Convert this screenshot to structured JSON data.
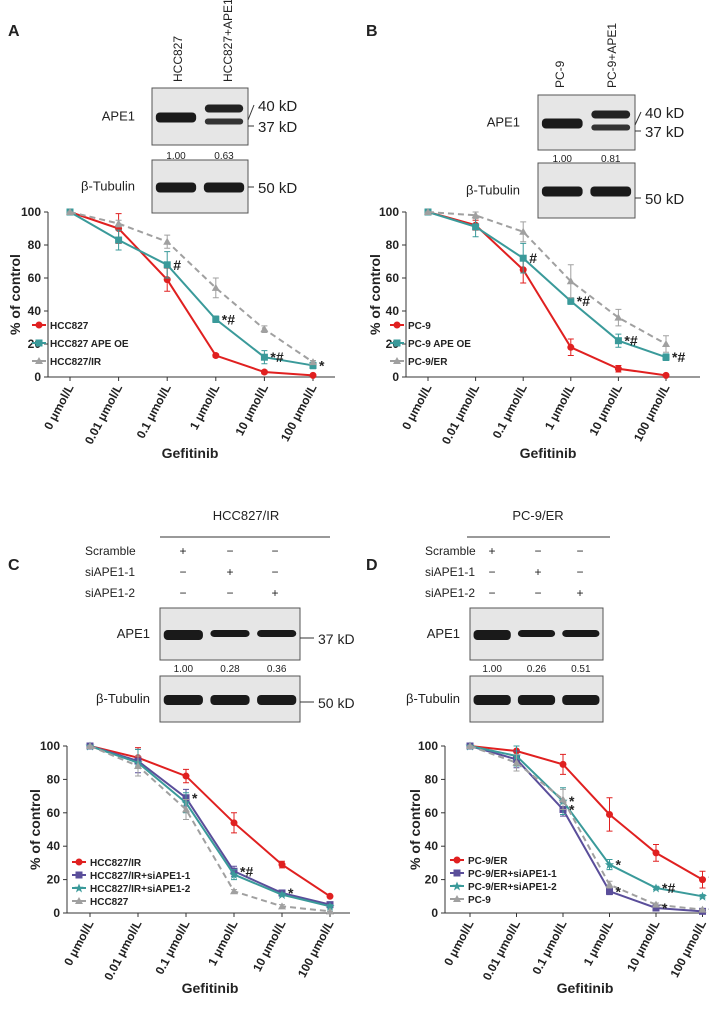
{
  "blots": [
    {
      "panel": "A",
      "lanes": [
        "HCC827",
        "HCC827+APE1"
      ],
      "proteins": [
        "APE1",
        "β-Tubulin"
      ],
      "sizes": [
        "40 kD",
        "37 kD",
        "50 kD"
      ],
      "ratios": [
        "1.00",
        "0.63"
      ]
    },
    {
      "panel": "B",
      "lanes": [
        "PC-9",
        "PC-9+APE1"
      ],
      "proteins": [
        "APE1",
        "β-Tubulin"
      ],
      "sizes": [
        "40 kD",
        "37 kD",
        "50 kD"
      ],
      "ratios": [
        "1.00",
        "0.81"
      ]
    },
    {
      "panel": "C",
      "title": "HCC827/IR",
      "treatments": [
        "Scramble",
        "siAPE1-1",
        "siAPE1-2"
      ],
      "matrix": [
        [
          "+",
          "−",
          "−"
        ],
        [
          "−",
          "+",
          "−"
        ],
        [
          "−",
          "−",
          "+"
        ]
      ],
      "proteins": [
        "APE1",
        "β-Tubulin"
      ],
      "sizes": [
        "37 kD",
        "50 kD"
      ],
      "ratios": [
        "1.00",
        "0.28",
        "0.36"
      ]
    },
    {
      "panel": "D",
      "title": "PC-9/ER",
      "treatments": [
        "Scramble",
        "siAPE1-1",
        "siAPE1-2"
      ],
      "matrix": [
        [
          "+",
          "−",
          "−"
        ],
        [
          "−",
          "+",
          "−"
        ],
        [
          "−",
          "−",
          "+"
        ]
      ],
      "proteins": [
        "APE1",
        "β-Tubulin"
      ],
      "ratios": [
        "1.00",
        "0.26",
        "0.51"
      ]
    }
  ],
  "chart_data": [
    {
      "type": "line",
      "ylabel": "% of control",
      "xlabel": "Gefitinib",
      "categories": [
        "0 μmol/L",
        "0.01 μmol/L",
        "0.1 μmol/L",
        "1 μmol/L",
        "10 μmol/L",
        "100 μmol/L"
      ],
      "ylim": [
        0,
        100
      ],
      "yticks": [
        0,
        20,
        40,
        60,
        80,
        100
      ],
      "series": [
        {
          "name": "HCC827",
          "color": "#e02020",
          "marker": "circle",
          "values": [
            100,
            90,
            59,
            13,
            3,
            1
          ],
          "errors": [
            0,
            9,
            7,
            1,
            1,
            0
          ]
        },
        {
          "name": "HCC827 APE OE",
          "color": "#3a9a9a",
          "marker": "square",
          "values": [
            100,
            83,
            68,
            35,
            12,
            7
          ],
          "errors": [
            0,
            6,
            8,
            2,
            4,
            2
          ]
        },
        {
          "name": "HCC827/IR",
          "color": "#a0a0a0",
          "marker": "triangle",
          "dash": true,
          "values": [
            100,
            93,
            82,
            54,
            29,
            9
          ],
          "errors": [
            0,
            2,
            4,
            6,
            2,
            1
          ]
        }
      ],
      "annotations": [
        {
          "text": "#",
          "category": 2,
          "series": 1
        },
        {
          "text": "*#",
          "category": 3,
          "series": 1
        },
        {
          "text": "*#",
          "category": 4,
          "series": 1
        },
        {
          "text": "*",
          "category": 5,
          "series": 1
        }
      ]
    },
    {
      "type": "line",
      "ylabel": "% of control",
      "xlabel": "Gefitinib",
      "categories": [
        "0 μmol/L",
        "0.01 μmol/L",
        "0.1 μmol/L",
        "1 μmol/L",
        "10 μmol/L",
        "100 μmol/L"
      ],
      "ylim": [
        0,
        100
      ],
      "yticks": [
        0,
        20,
        40,
        60,
        80,
        100
      ],
      "series": [
        {
          "name": "PC-9",
          "color": "#e02020",
          "marker": "circle",
          "values": [
            100,
            92,
            65,
            18,
            5,
            1
          ],
          "errors": [
            0,
            3,
            8,
            5,
            2,
            0
          ]
        },
        {
          "name": "PC-9 APE OE",
          "color": "#3a9a9a",
          "marker": "square",
          "values": [
            100,
            91,
            72,
            46,
            22,
            12
          ],
          "errors": [
            0,
            6,
            9,
            2,
            4,
            2
          ]
        },
        {
          "name": "PC-9/ER",
          "color": "#a0a0a0",
          "marker": "triangle",
          "dash": true,
          "values": [
            100,
            98,
            88,
            58,
            36,
            20
          ],
          "errors": [
            0,
            2,
            6,
            10,
            5,
            5
          ]
        }
      ],
      "annotations": [
        {
          "text": "#",
          "category": 2,
          "series": 1
        },
        {
          "text": "*#",
          "category": 3,
          "series": 1
        },
        {
          "text": "*#",
          "category": 4,
          "series": 1
        },
        {
          "text": "*#",
          "category": 5,
          "series": 1
        }
      ]
    },
    {
      "type": "line",
      "ylabel": "% of control",
      "xlabel": "Gefitinib",
      "categories": [
        "0 μmol/L",
        "0.01 μmol/L",
        "0.1 μmol/L",
        "1 μmol/L",
        "10 μmol/L",
        "100 μmol/L"
      ],
      "ylim": [
        0,
        100
      ],
      "yticks": [
        0,
        20,
        40,
        60,
        80,
        100
      ],
      "series": [
        {
          "name": "HCC827/IR",
          "color": "#e02020",
          "marker": "circle",
          "values": [
            100,
            93,
            82,
            54,
            29,
            10
          ],
          "errors": [
            0,
            6,
            4,
            6,
            2,
            0
          ]
        },
        {
          "name": "HCC827/IR+siAPE1-1",
          "color": "#5a4e9a",
          "marker": "square",
          "values": [
            100,
            91,
            69,
            25,
            12,
            5
          ],
          "errors": [
            0,
            7,
            5,
            3,
            1,
            1
          ]
        },
        {
          "name": "HCC827/IR+siAPE1-2",
          "color": "#3a9a9a",
          "marker": "star",
          "values": [
            100,
            90,
            66,
            23,
            11,
            4
          ],
          "errors": [
            0,
            8,
            6,
            3,
            1,
            1
          ]
        },
        {
          "name": "HCC827",
          "color": "#a0a0a0",
          "marker": "triangle",
          "dash": true,
          "values": [
            100,
            88,
            62,
            13,
            4,
            1
          ],
          "errors": [
            0,
            6,
            6,
            1,
            1,
            0
          ]
        }
      ],
      "annotations": [
        {
          "text": "*",
          "category": 2,
          "series": 1
        },
        {
          "text": "*#",
          "category": 3,
          "series": 1
        },
        {
          "text": "*",
          "category": 4,
          "series": 1
        }
      ]
    },
    {
      "type": "line",
      "ylabel": "% of control",
      "xlabel": "Gefitinib",
      "categories": [
        "0 μmol/L",
        "0.01 μmol/L",
        "0.1 μmol/L",
        "1 μmol/L",
        "10 μmol/L",
        "100 μmol/L"
      ],
      "ylim": [
        0,
        100
      ],
      "yticks": [
        0,
        20,
        40,
        60,
        80,
        100
      ],
      "series": [
        {
          "name": "PC-9/ER",
          "color": "#e02020",
          "marker": "circle",
          "values": [
            100,
            97,
            89,
            59,
            36,
            20
          ],
          "errors": [
            0,
            3,
            6,
            10,
            5,
            5
          ]
        },
        {
          "name": "PC-9/ER+siAPE1-1",
          "color": "#5a4e9a",
          "marker": "square",
          "values": [
            100,
            92,
            62,
            13,
            3,
            1
          ],
          "errors": [
            0,
            5,
            4,
            2,
            1,
            0
          ]
        },
        {
          "name": "PC-9/ER+siAPE1-2",
          "color": "#3a9a9a",
          "marker": "star",
          "values": [
            100,
            94,
            67,
            29,
            15,
            10
          ],
          "errors": [
            0,
            6,
            8,
            3,
            1,
            1
          ]
        },
        {
          "name": "PC-9",
          "color": "#a0a0a0",
          "marker": "triangle",
          "dash": true,
          "values": [
            100,
            90,
            68,
            17,
            5,
            2
          ],
          "errors": [
            0,
            5,
            6,
            2,
            1,
            0
          ]
        }
      ],
      "annotations": [
        {
          "text": "*",
          "category": 2,
          "series": 2
        },
        {
          "text": "*",
          "category": 2,
          "series": 1
        },
        {
          "text": "*",
          "category": 3,
          "series": 2
        },
        {
          "text": "*",
          "category": 3,
          "series": 1
        },
        {
          "text": "*#",
          "category": 4,
          "series": 2
        },
        {
          "text": "*",
          "category": 4,
          "series": 1
        },
        {
          "text": "*#",
          "category": 5,
          "series": 0
        },
        {
          "text": "*",
          "category": 5,
          "series": 1
        }
      ]
    }
  ]
}
